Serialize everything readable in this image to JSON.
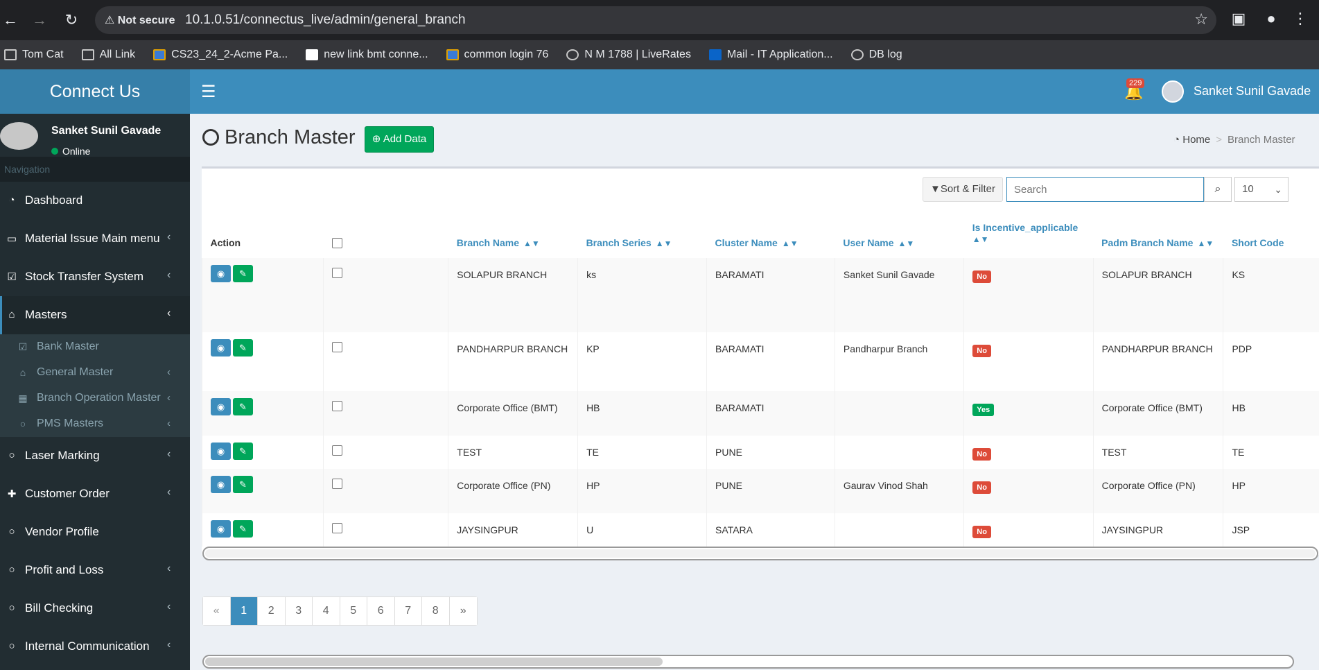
{
  "browser": {
    "not_secure": "Not secure",
    "url": "10.1.0.51/connectus_live/admin/general_branch",
    "bookmarks": [
      {
        "label": "Tom Cat",
        "icon": "folder-icon"
      },
      {
        "label": "All Link",
        "icon": "folder-icon"
      },
      {
        "label": "CS23_24_2-Acme Pa...",
        "icon": "app-icon"
      },
      {
        "label": "new link bmt conne...",
        "icon": "page-icon"
      },
      {
        "label": "common login 76",
        "icon": "app-icon"
      },
      {
        "label": "N M 1788 | LiveRates",
        "icon": "globe-icon"
      },
      {
        "label": "Mail - IT Application...",
        "icon": "outlook-icon"
      },
      {
        "label": "DB log",
        "icon": "globe-icon"
      }
    ]
  },
  "header": {
    "logo": "Connect Us",
    "notification_count": "229",
    "user_name": "Sanket Sunil Gavade"
  },
  "sidebar": {
    "user_name": "Sanket Sunil Gavade",
    "status": "Online",
    "nav_header": "Navigation",
    "items": [
      {
        "label": "Dashboard",
        "icon": "dashboard-icon",
        "chevron": false
      },
      {
        "label": "Material Issue Main menu",
        "icon": "money-icon",
        "chevron": true
      },
      {
        "label": "Stock Transfer System",
        "icon": "check-square-icon",
        "chevron": true
      },
      {
        "label": "Masters",
        "icon": "home-icon",
        "chevron": true,
        "active": true
      }
    ],
    "sub_items": [
      {
        "label": "Bank Master",
        "icon": "check-square-icon",
        "chevron": false
      },
      {
        "label": "General Master",
        "icon": "home-icon",
        "chevron": true
      },
      {
        "label": "Branch Operation Master",
        "icon": "calendar-icon",
        "chevron": true
      },
      {
        "label": "PMS Masters",
        "icon": "circle-icon",
        "chevron": true
      }
    ],
    "items_after": [
      {
        "label": "Laser Marking",
        "icon": "circle-icon",
        "chevron": true
      },
      {
        "label": "Customer Order",
        "icon": "plus-icon",
        "chevron": true
      },
      {
        "label": "Vendor Profile",
        "icon": "circle-icon",
        "chevron": false
      },
      {
        "label": "Profit and Loss",
        "icon": "circle-icon",
        "chevron": true
      },
      {
        "label": "Bill Checking",
        "icon": "circle-icon",
        "chevron": true
      },
      {
        "label": "Internal Communication",
        "icon": "circle-icon",
        "chevron": true
      }
    ]
  },
  "page": {
    "title": "Branch Master",
    "add_button": "Add Data",
    "breadcrumb_home": "Home",
    "breadcrumb_current": "Branch Master"
  },
  "toolbar": {
    "sort_filter": "Sort & Filter",
    "search_placeholder": "Search",
    "page_size": "10"
  },
  "table": {
    "columns": {
      "action": "Action",
      "branch_name": "Branch Name",
      "branch_series": "Branch Series",
      "cluster_name": "Cluster Name",
      "user_name": "User Name",
      "incentive": "Is Incentive_applicable",
      "padm_branch_name": "Padm Branch Name",
      "short_code": "Short Code"
    },
    "rows": [
      {
        "branch_name": "SOLAPUR BRANCH",
        "branch_series": "ks",
        "cluster_name": "BARAMATI",
        "user_name": "Sanket Sunil Gavade",
        "incentive": "No",
        "padm_branch_name": "SOLAPUR BRANCH",
        "short_code": "KS"
      },
      {
        "branch_name": "PANDHARPUR BRANCH",
        "branch_series": "KP",
        "cluster_name": "BARAMATI",
        "user_name": "Pandharpur Branch",
        "incentive": "No",
        "padm_branch_name": "PANDHARPUR BRANCH",
        "short_code": "PDP"
      },
      {
        "branch_name": "Corporate Office (BMT)",
        "branch_series": "HB",
        "cluster_name": "BARAMATI",
        "user_name": "",
        "incentive": "Yes",
        "padm_branch_name": "Corporate Office (BMT)",
        "short_code": "HB"
      },
      {
        "branch_name": "TEST",
        "branch_series": "TE",
        "cluster_name": "PUNE",
        "user_name": "",
        "incentive": "No",
        "padm_branch_name": "TEST",
        "short_code": "TE"
      },
      {
        "branch_name": "Corporate Office (PN)",
        "branch_series": "HP",
        "cluster_name": "PUNE",
        "user_name": "Gaurav Vinod Shah",
        "incentive": "No",
        "padm_branch_name": "Corporate Office (PN)",
        "short_code": "HP"
      },
      {
        "branch_name": "JAYSINGPUR",
        "branch_series": "U",
        "cluster_name": "SATARA",
        "user_name": "",
        "incentive": "No",
        "padm_branch_name": "JAYSINGPUR",
        "short_code": "JSP"
      }
    ]
  },
  "pagination": {
    "prev": "«",
    "pages": [
      "1",
      "2",
      "3",
      "4",
      "5",
      "6",
      "7",
      "8"
    ],
    "next": "»",
    "active": "1"
  },
  "colors": {
    "primary": "#3c8dbc",
    "success": "#00a65a",
    "danger": "#dd4b39",
    "sidebar": "#222d32"
  }
}
